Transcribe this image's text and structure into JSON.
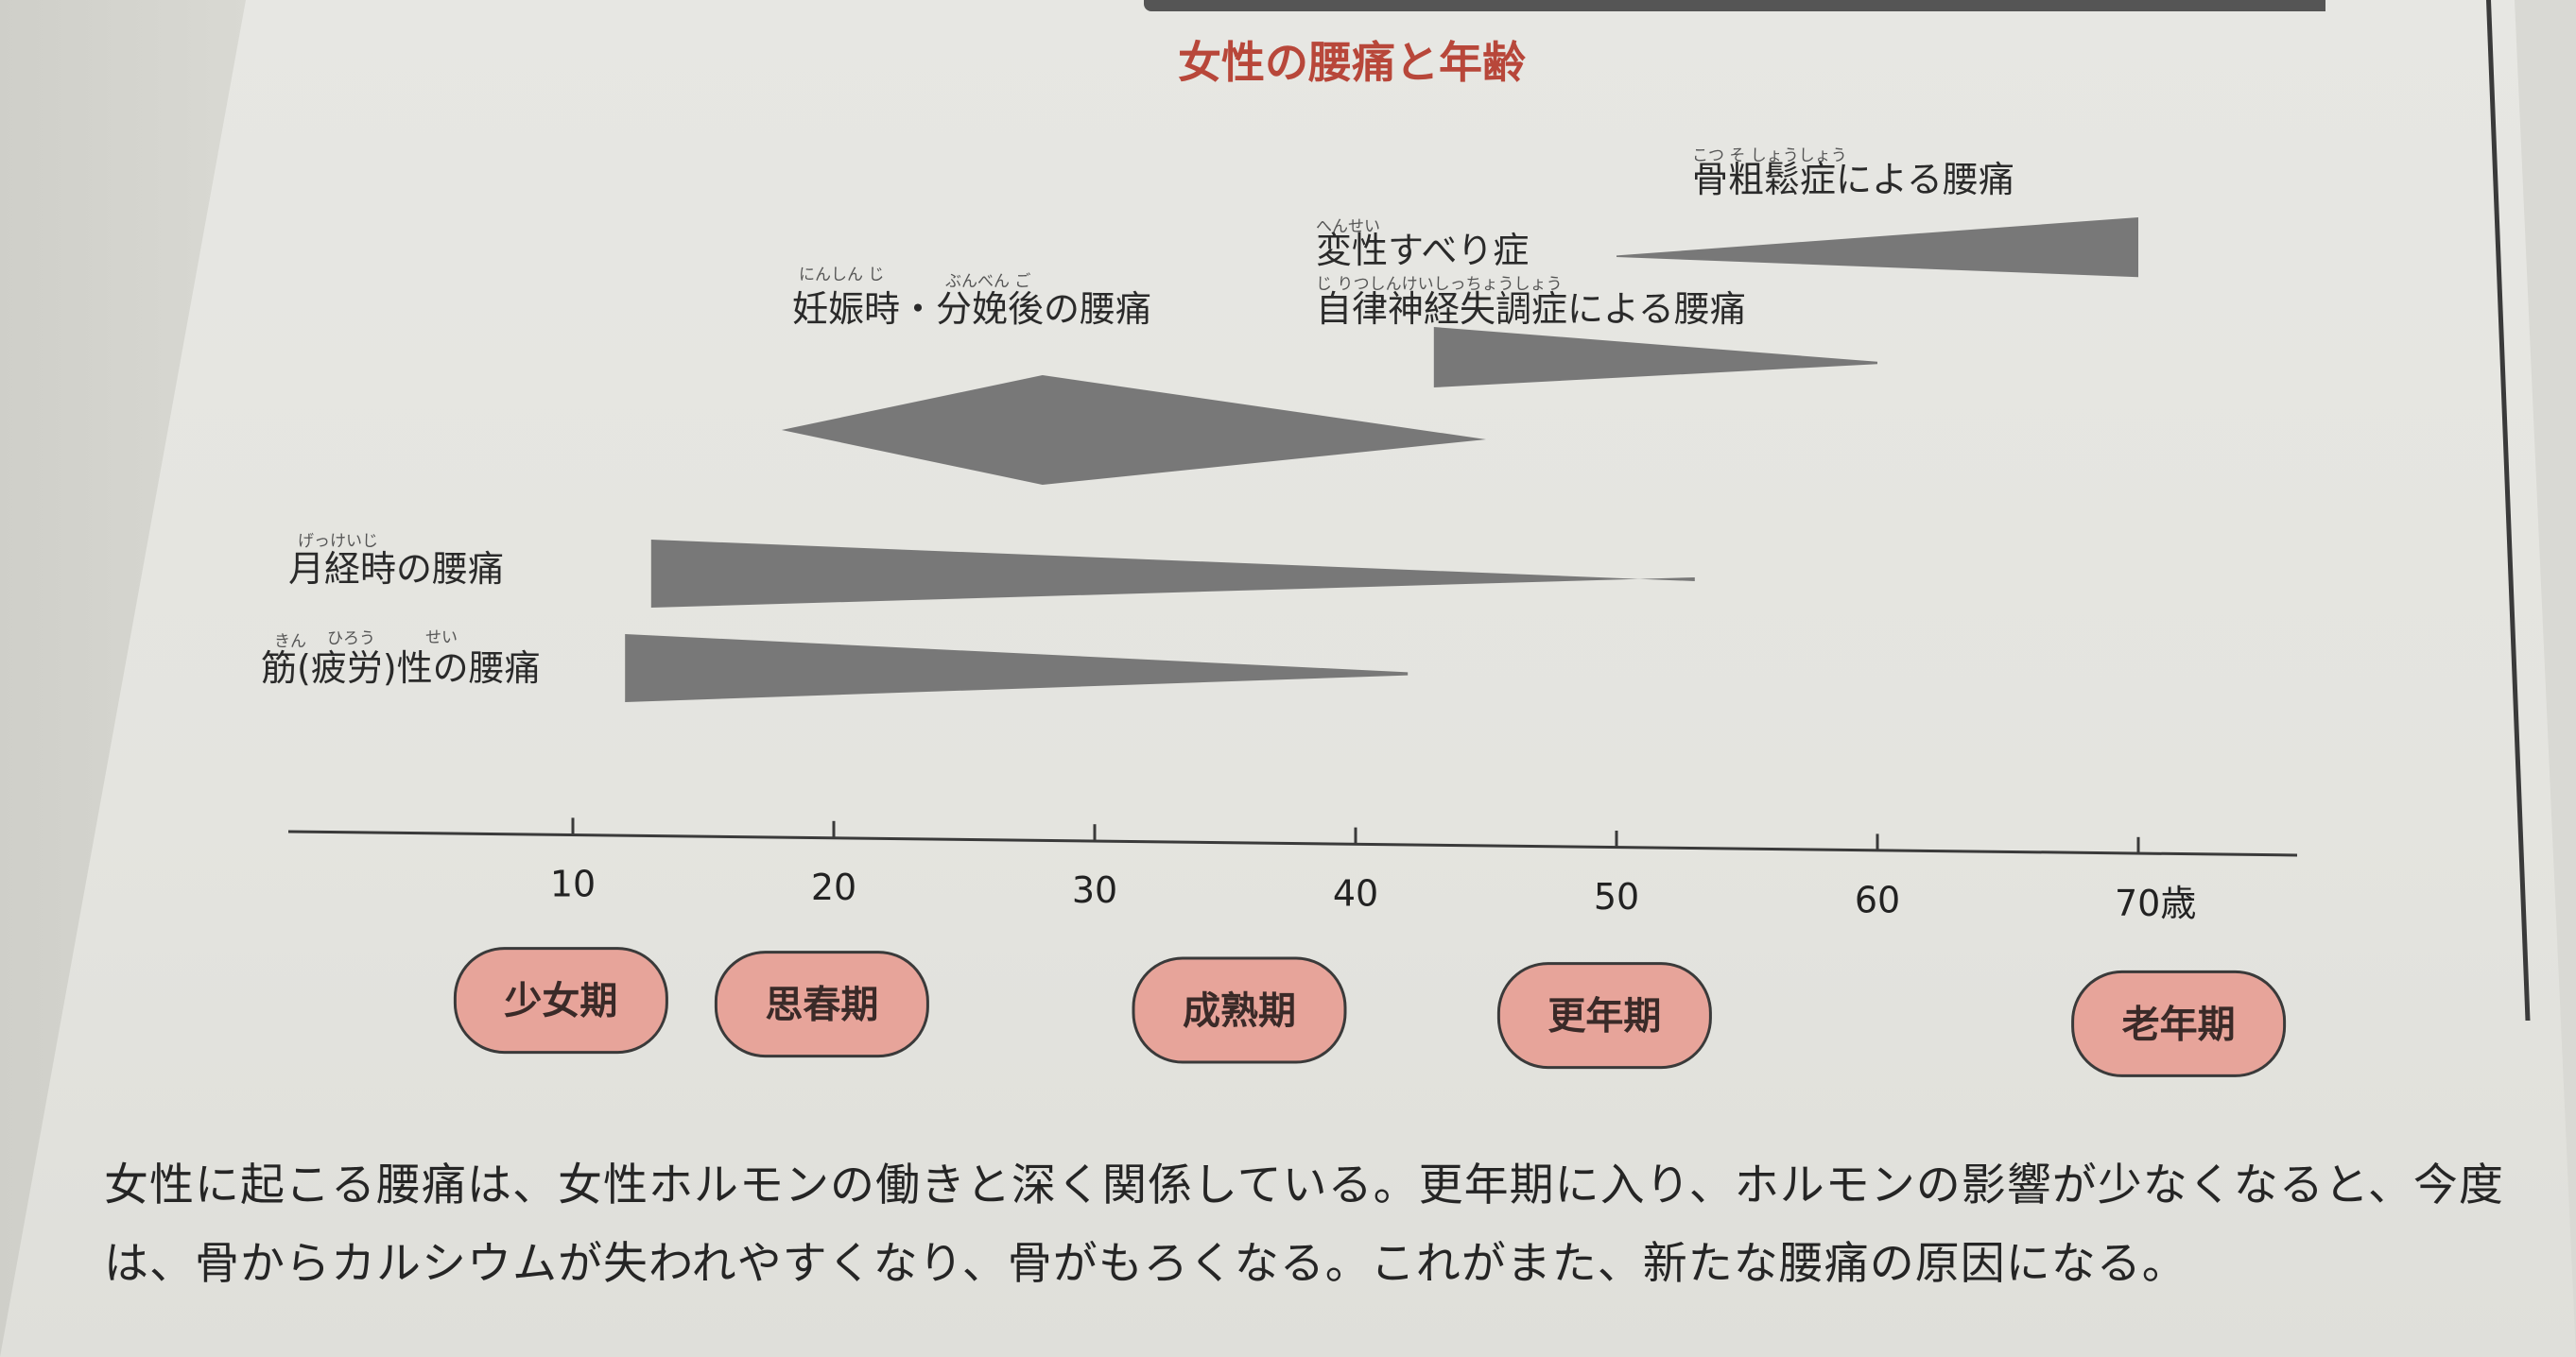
{
  "chart_data": {
    "type": "area",
    "title": "女性の腰痛と年齢",
    "xlabel": "",
    "ylabel": "",
    "x_ticks": [
      10,
      20,
      30,
      40,
      50,
      60,
      70
    ],
    "x_tick_labels": [
      "10",
      "20",
      "30",
      "40",
      "50",
      "60",
      "70歳"
    ],
    "xlim": [
      0,
      73
    ],
    "grid": false,
    "series": [
      {
        "name": "骨粗鬆症による腰痛",
        "start_age": 50,
        "peak_age": 70,
        "end_age": 70,
        "start_level": 0.05,
        "peak_level": 1.0,
        "end_level": 1.0
      },
      {
        "name": "変性すべり症 自律神経失調症による腰痛",
        "start_age": 43,
        "peak_age": 43,
        "end_age": 60,
        "start_level": 1.0,
        "peak_level": 1.0,
        "end_level": 0.1
      },
      {
        "name": "妊娠時・分娩後の腰痛",
        "start_age": 18,
        "peak_age": 28,
        "end_age": 45,
        "start_level": 0.0,
        "peak_level": 1.0,
        "end_level": 0.0
      },
      {
        "name": "月経時の腰痛",
        "start_age": 13,
        "peak_age": 13,
        "end_age": 53,
        "start_level": 1.0,
        "peak_level": 1.0,
        "end_level": 0.0
      },
      {
        "name": "筋(疲労)性の腰痛",
        "start_age": 12,
        "peak_age": 12,
        "end_age": 42,
        "start_level": 1.0,
        "peak_level": 1.0,
        "end_level": 0.1
      }
    ],
    "phases": [
      {
        "label": "少女期",
        "age": 9
      },
      {
        "label": "思春期",
        "age": 19
      },
      {
        "label": "成熟期",
        "age": 35
      },
      {
        "label": "更年期",
        "age": 49
      },
      {
        "label": "老年期",
        "age": 71
      }
    ],
    "colors": {
      "band": "#6f6f6f",
      "phase_fill": "#e7a49a",
      "phase_stroke": "#3a3a3a",
      "title": "#b8473a"
    }
  },
  "furigana": {
    "osteoporosis": "こつ そ しょうしょう",
    "degenerative": "へんせい",
    "autonomic": "じ りつしんけいしっちょうしょう",
    "pregnancy_1": "にんしん じ",
    "pregnancy_2": "ぶんべん ご",
    "menstrual": "げっけいじ",
    "muscle_1": "きん",
    "muscle_2": "ひろう",
    "muscle_3": "せい"
  },
  "caption": {
    "line1": "女性に起こる腰痛は、女性ホルモンの働きと深く関係している。更年期に入り、ホルモンの影響が少なくなると、今度",
    "line2": "は、骨からカルシウムが失われやすくなり、骨がもろくなる。これがまた、新たな腰痛の原因になる。"
  }
}
